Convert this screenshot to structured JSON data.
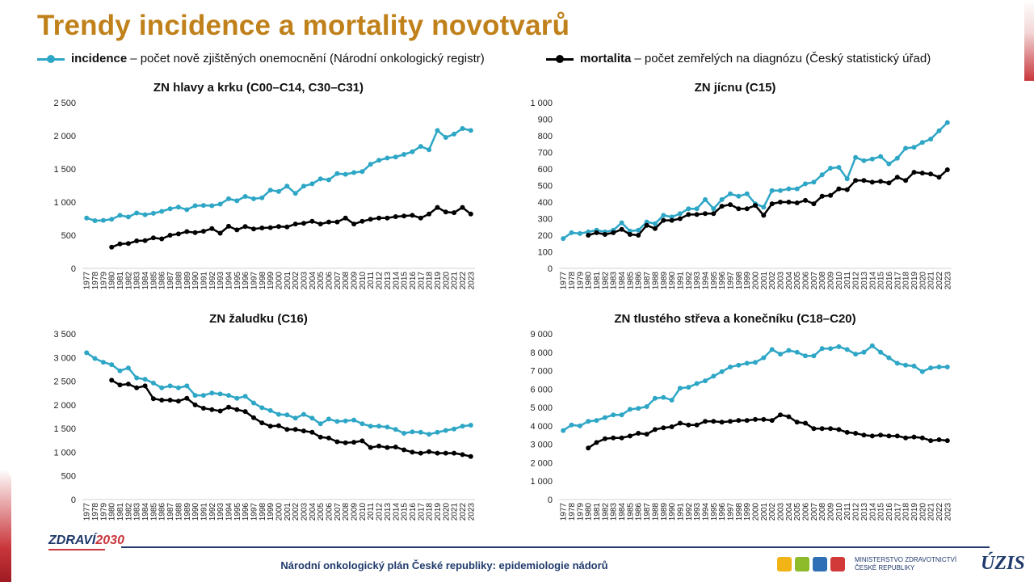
{
  "title": "Trendy incidence a mortality novotvarů",
  "legend": {
    "incidence_bold": "incidence",
    "incidence_rest": "– počet nově zjištěných onemocnění (Národní onkologický registr)",
    "mortality_bold": "mortalita",
    "mortality_rest": "– počet zemřelých na diagnózu (Český statistický úřad)"
  },
  "colors": {
    "incidence": "#2ea6c6",
    "mortality": "#000000",
    "title": "#c0801a",
    "footer": "#1f3a6b"
  },
  "footer": {
    "text": "Národní onkologický plán České republiky: epidemiologie nádorů",
    "logo_left_a": "ZDRAVÍ",
    "logo_left_b": "2030",
    "ministry_line1": "MINISTERSTVO ZDRAVOTNICTVÍ",
    "ministry_line2": "ČESKÉ REPUBLIKY",
    "uzis": "ÚZIS"
  },
  "chart_data": [
    {
      "type": "line",
      "title": "ZN hlavy a krku (C00–C14, C30–C31)",
      "x": [
        1977,
        1978,
        1979,
        1980,
        1981,
        1982,
        1983,
        1984,
        1985,
        1986,
        1987,
        1988,
        1989,
        1990,
        1991,
        1992,
        1993,
        1994,
        1995,
        1996,
        1997,
        1998,
        1999,
        2000,
        2001,
        2002,
        2003,
        2004,
        2005,
        2006,
        2007,
        2008,
        2009,
        2010,
        2011,
        2012,
        2013,
        2014,
        2015,
        2016,
        2017,
        2018,
        2019,
        2020,
        2021,
        2022,
        2023
      ],
      "ylim": [
        0,
        2500
      ],
      "yticks": [
        0,
        500,
        1000,
        1500,
        2000,
        2500
      ],
      "yticklabels": [
        "0",
        "500",
        "1 000",
        "1 500",
        "2 000",
        "2 500"
      ],
      "series": [
        {
          "name": "incidence",
          "values": [
            760,
            720,
            725,
            740,
            800,
            775,
            835,
            810,
            830,
            860,
            900,
            925,
            885,
            945,
            950,
            945,
            970,
            1050,
            1020,
            1085,
            1050,
            1065,
            1180,
            1160,
            1240,
            1130,
            1240,
            1275,
            1350,
            1335,
            1430,
            1420,
            1445,
            1460,
            1570,
            1630,
            1665,
            1680,
            1720,
            1760,
            1840,
            1790,
            2080,
            1975,
            2025,
            2110,
            2080
          ]
        },
        {
          "name": "mortalita",
          "values": [
            null,
            null,
            null,
            320,
            370,
            375,
            415,
            420,
            460,
            445,
            500,
            520,
            555,
            540,
            560,
            600,
            530,
            635,
            580,
            630,
            595,
            610,
            615,
            630,
            625,
            670,
            680,
            710,
            670,
            700,
            700,
            760,
            670,
            710,
            740,
            760,
            760,
            780,
            790,
            800,
            760,
            820,
            920,
            850,
            840,
            920,
            820
          ]
        }
      ]
    },
    {
      "type": "line",
      "title": "ZN jícnu (C15)",
      "x": [
        1977,
        1978,
        1979,
        1980,
        1981,
        1982,
        1983,
        1984,
        1985,
        1986,
        1987,
        1988,
        1989,
        1990,
        1991,
        1992,
        1993,
        1994,
        1995,
        1996,
        1997,
        1998,
        1999,
        2000,
        2001,
        2002,
        2003,
        2004,
        2005,
        2006,
        2007,
        2008,
        2009,
        2010,
        2011,
        2012,
        2013,
        2014,
        2015,
        2016,
        2017,
        2018,
        2019,
        2020,
        2021,
        2022,
        2023
      ],
      "ylim": [
        0,
        1000
      ],
      "yticks": [
        0,
        100,
        200,
        300,
        400,
        500,
        600,
        700,
        800,
        900,
        1000
      ],
      "yticklabels": [
        "0",
        "100",
        "200",
        "300",
        "400",
        "500",
        "600",
        "700",
        "800",
        "900",
        "1 000"
      ],
      "series": [
        {
          "name": "incidence",
          "values": [
            180,
            215,
            210,
            220,
            230,
            220,
            230,
            275,
            225,
            230,
            280,
            270,
            320,
            310,
            330,
            360,
            360,
            415,
            360,
            415,
            450,
            435,
            450,
            390,
            370,
            470,
            470,
            480,
            480,
            510,
            520,
            565,
            605,
            610,
            540,
            670,
            650,
            660,
            675,
            630,
            665,
            725,
            730,
            760,
            780,
            830,
            880
          ]
        },
        {
          "name": "mortalita",
          "values": [
            null,
            null,
            null,
            200,
            215,
            205,
            215,
            235,
            205,
            200,
            260,
            240,
            290,
            290,
            300,
            325,
            325,
            330,
            330,
            375,
            385,
            360,
            360,
            380,
            320,
            390,
            400,
            400,
            395,
            410,
            390,
            435,
            440,
            480,
            475,
            530,
            530,
            520,
            525,
            515,
            550,
            530,
            580,
            575,
            570,
            550,
            595
          ]
        }
      ]
    },
    {
      "type": "line",
      "title": "ZN žaludku (C16)",
      "x": [
        1977,
        1978,
        1979,
        1980,
        1981,
        1982,
        1983,
        1984,
        1985,
        1986,
        1987,
        1988,
        1989,
        1990,
        1991,
        1992,
        1993,
        1994,
        1995,
        1996,
        1997,
        1998,
        1999,
        2000,
        2001,
        2002,
        2003,
        2004,
        2005,
        2006,
        2007,
        2008,
        2009,
        2010,
        2011,
        2012,
        2013,
        2014,
        2015,
        2016,
        2017,
        2018,
        2019,
        2020,
        2021,
        2022,
        2023
      ],
      "ylim": [
        0,
        3500
      ],
      "yticks": [
        0,
        500,
        1000,
        1500,
        2000,
        2500,
        3000,
        3500
      ],
      "yticklabels": [
        "0",
        "500",
        "1 000",
        "1 500",
        "2 000",
        "2 500",
        "3 000",
        "3 500"
      ],
      "series": [
        {
          "name": "incidence",
          "values": [
            3100,
            2980,
            2900,
            2850,
            2720,
            2780,
            2570,
            2540,
            2460,
            2360,
            2400,
            2360,
            2400,
            2200,
            2200,
            2250,
            2230,
            2200,
            2140,
            2180,
            2040,
            1940,
            1880,
            1800,
            1790,
            1720,
            1800,
            1720,
            1600,
            1700,
            1650,
            1660,
            1680,
            1600,
            1550,
            1550,
            1530,
            1480,
            1400,
            1430,
            1420,
            1380,
            1420,
            1460,
            1490,
            1550,
            1570
          ]
        },
        {
          "name": "mortalita",
          "values": [
            null,
            null,
            null,
            2520,
            2420,
            2440,
            2360,
            2400,
            2130,
            2100,
            2100,
            2080,
            2140,
            2000,
            1930,
            1900,
            1870,
            1950,
            1900,
            1860,
            1730,
            1620,
            1550,
            1560,
            1480,
            1480,
            1450,
            1420,
            1320,
            1300,
            1220,
            1200,
            1210,
            1240,
            1100,
            1130,
            1100,
            1110,
            1050,
            1000,
            980,
            1010,
            980,
            980,
            980,
            950,
            910
          ]
        }
      ]
    },
    {
      "type": "line",
      "title": "ZN tlustého střeva a konečníku (C18–C20)",
      "x": [
        1977,
        1978,
        1979,
        1980,
        1981,
        1982,
        1983,
        1984,
        1985,
        1986,
        1987,
        1988,
        1989,
        1990,
        1991,
        1992,
        1993,
        1994,
        1995,
        1996,
        1997,
        1998,
        1999,
        2000,
        2001,
        2002,
        2003,
        2004,
        2005,
        2006,
        2007,
        2008,
        2009,
        2010,
        2011,
        2012,
        2013,
        2014,
        2015,
        2016,
        2017,
        2018,
        2019,
        2020,
        2021,
        2022,
        2023
      ],
      "ylim": [
        0,
        9000
      ],
      "yticks": [
        0,
        1000,
        2000,
        3000,
        4000,
        5000,
        6000,
        7000,
        8000,
        9000
      ],
      "yticklabels": [
        "0",
        "1 000",
        "2 000",
        "3 000",
        "4 000",
        "5 000",
        "6 000",
        "7 000",
        "8 000",
        "9 000"
      ],
      "series": [
        {
          "name": "incidence",
          "values": [
            3750,
            4050,
            4000,
            4250,
            4300,
            4450,
            4600,
            4600,
            4900,
            4950,
            5050,
            5500,
            5550,
            5400,
            6050,
            6100,
            6300,
            6450,
            6700,
            6950,
            7200,
            7300,
            7400,
            7450,
            7700,
            8150,
            7900,
            8100,
            8000,
            7800,
            7800,
            8200,
            8200,
            8300,
            8150,
            7900,
            8000,
            8350,
            8000,
            7700,
            7400,
            7300,
            7250,
            6950,
            7150,
            7200,
            7200
          ]
        },
        {
          "name": "mortalita",
          "values": [
            null,
            null,
            null,
            2800,
            3100,
            3300,
            3350,
            3350,
            3450,
            3600,
            3550,
            3800,
            3900,
            3950,
            4150,
            4050,
            4050,
            4250,
            4250,
            4200,
            4250,
            4300,
            4300,
            4350,
            4350,
            4300,
            4600,
            4500,
            4200,
            4150,
            3850,
            3850,
            3850,
            3800,
            3650,
            3600,
            3500,
            3450,
            3500,
            3450,
            3450,
            3350,
            3400,
            3350,
            3200,
            3250,
            3200
          ]
        }
      ]
    }
  ]
}
